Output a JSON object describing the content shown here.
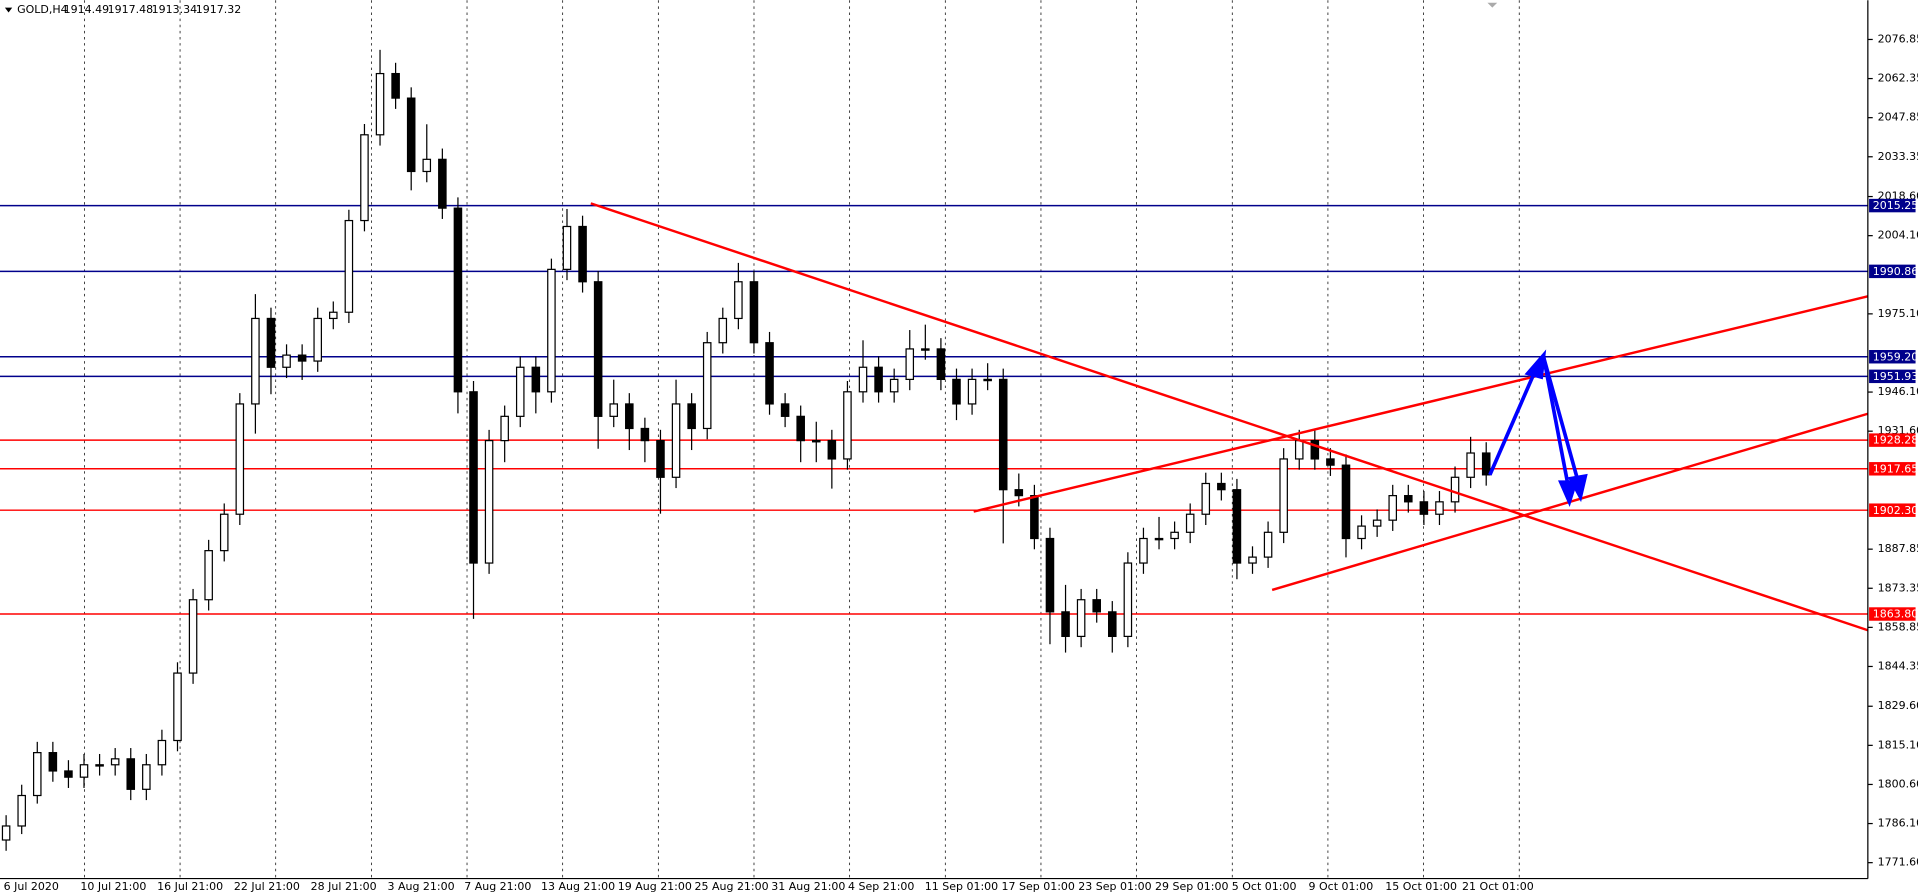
{
  "chart_data": {
    "type": "candlestick",
    "symbol": "GOLD,H4",
    "quote": [
      1914.49,
      1917.48,
      1913.34,
      1917.32
    ],
    "ylim": [
      1765.7,
      2091.37
    ],
    "yticks": [
      2076.85,
      2062.35,
      2047.85,
      2033.35,
      {
        "value": 2018.6,
        "label": "2018.60"
      },
      {
        "value": 2004.1,
        "label": "2004.10"
      },
      {
        "value": 1975.1,
        "label": "1975.10"
      },
      {
        "value": 1946.1,
        "label": "1946.10"
      },
      {
        "value": 1931.6,
        "label": "1931.60"
      },
      1887.85,
      1873.35,
      1858.85,
      1844.35,
      {
        "value": 1829.6,
        "label": "1829.60"
      },
      {
        "value": 1815.1,
        "label": "1815.10"
      },
      {
        "value": 1800.6,
        "label": "1800.60"
      },
      {
        "value": 1786.1,
        "label": "1786.10"
      },
      {
        "value": 1771.6,
        "label": "1771.60"
      }
    ],
    "levels": [
      {
        "value": 2015.25,
        "label": "2015.25",
        "color": "#00008b"
      },
      {
        "value": 1990.86,
        "label": "1990.86",
        "color": "#00008b"
      },
      {
        "value": 1959.2,
        "label": "1959.20",
        "color": "#00008b"
      },
      {
        "value": 1951.93,
        "label": "1951.93",
        "color": "#00008b"
      },
      {
        "value": 1928.28,
        "label": "1928.28",
        "color": "#ff0000"
      },
      {
        "value": 1917.65,
        "label": "1917.65",
        "color": "#ff0000"
      },
      {
        "value": 1902.3,
        "label": "1902.30",
        "color": "#ff0000"
      },
      {
        "value": 1863.8,
        "label": "1863.80",
        "color": "#ff0000"
      }
    ],
    "x_labels": [
      "6 Jul 2020",
      "10 Jul 21:00",
      "16 Jul 21:00",
      "22 Jul 21:00",
      "28 Jul 21:00",
      "3 Aug 21:00",
      "7 Aug 21:00",
      "13 Aug 21:00",
      "19 Aug 21:00",
      "25 Aug 21:00",
      "31 Aug 21:00",
      "4 Sep 21:00",
      "11 Sep 01:00",
      "17 Sep 01:00",
      "23 Sep 01:00",
      "29 Sep 01:00",
      "5 Oct 01:00",
      "9 Oct 01:00",
      "15 Oct 01:00",
      "21 Oct 01:00"
    ],
    "open": [
      1780.0,
      1785.2,
      1796.5,
      1812.4,
      1805.6,
      1803.3,
      1807.9,
      1807.9,
      1810.1,
      1798.8,
      1807.9,
      1816.9,
      1841.9,
      1869.1,
      1887.3,
      1900.8,
      1941.7,
      1973.4,
      1955.3,
      1959.8,
      1957.6,
      1973.4,
      1975.7,
      2009.7,
      2041.5,
      2064.2,
      2055.1,
      2027.9,
      2032.4,
      2014.3,
      1946.2,
      1882.7,
      1928.1,
      1937.1,
      1955.3,
      1946.2,
      1991.6,
      2007.5,
      1987.0,
      1937.1,
      1941.7,
      1932.6,
      1928.1,
      1914.5,
      1941.7,
      1932.6,
      1964.4,
      1973.4,
      1987.0,
      1964.4,
      1941.7,
      1937.1,
      1928.1,
      1928.1,
      1921.3,
      1946.2,
      1955.3,
      1946.2,
      1950.8,
      1962.1,
      1962.1,
      1950.8,
      1941.7,
      1950.8,
      1950.8,
      1909.9,
      1907.7,
      1891.8,
      1864.6,
      1855.5,
      1869.1,
      1864.6,
      1855.5,
      1882.7,
      1891.8,
      1891.8,
      1894.1,
      1900.8,
      1912.2,
      1909.9,
      1882.7,
      1884.9,
      1894.1,
      1921.3,
      1928.1,
      1921.3,
      1919.0,
      1891.8,
      1896.4,
      1898.6,
      1907.7,
      1905.4,
      1900.8,
      1905.4,
      1914.5,
      1923.5
    ],
    "high": [
      1789.2,
      1800.5,
      1816.4,
      1816.4,
      1809.6,
      1811.9,
      1811.9,
      1814.1,
      1814.1,
      1811.9,
      1820.9,
      1845.9,
      1873.1,
      1891.3,
      1904.8,
      1945.7,
      1982.4,
      1977.4,
      1963.8,
      1963.8,
      1977.4,
      1979.7,
      2013.7,
      2045.5,
      2073.0,
      2068.2,
      2059.1,
      2045.4,
      2036.4,
      2018.3,
      1950.2,
      1932.1,
      1941.1,
      1959.3,
      1959.3,
      1995.6,
      2014.0,
      2011.5,
      1991.0,
      1950.7,
      1945.7,
      1936.6,
      1932.1,
      1950.7,
      1945.7,
      1968.4,
      1977.4,
      1994.0,
      1991.0,
      1968.4,
      1945.7,
      1941.1,
      1935.1,
      1932.1,
      1950.2,
      1965.3,
      1959.3,
      1954.8,
      1969.1,
      1971.1,
      1966.1,
      1954.8,
      1954.8,
      1956.8,
      1954.8,
      1915.9,
      1911.7,
      1895.8,
      1874.6,
      1873.1,
      1873.1,
      1868.6,
      1886.7,
      1895.8,
      1899.8,
      1898.1,
      1904.8,
      1916.2,
      1916.2,
      1913.9,
      1888.9,
      1898.1,
      1925.3,
      1932.1,
      1932.1,
      1925.3,
      1923.0,
      1900.4,
      1902.6,
      1911.7,
      1911.7,
      1909.4,
      1909.4,
      1918.5,
      1929.5,
      1927.5
    ],
    "low": [
      1776.0,
      1782.2,
      1793.5,
      1801.6,
      1799.3,
      1799.3,
      1803.9,
      1803.9,
      1794.8,
      1794.8,
      1803.9,
      1812.9,
      1837.9,
      1865.1,
      1883.3,
      1896.8,
      1930.7,
      1945.3,
      1951.3,
      1950.6,
      1953.6,
      1969.4,
      1971.7,
      2005.7,
      2037.5,
      2051.1,
      2020.9,
      2023.9,
      2010.3,
      1938.2,
      1862.0,
      1878.7,
      1920.1,
      1933.1,
      1938.2,
      1942.2,
      1987.6,
      1983.0,
      1925.1,
      1933.1,
      1924.6,
      1920.1,
      1901.0,
      1910.5,
      1924.6,
      1928.6,
      1960.4,
      1969.4,
      1960.4,
      1937.7,
      1933.1,
      1920.1,
      1920.1,
      1910.3,
      1917.3,
      1942.2,
      1942.2,
      1942.2,
      1946.8,
      1958.1,
      1946.8,
      1935.7,
      1937.7,
      1946.8,
      1890.0,
      1903.7,
      1887.8,
      1852.6,
      1849.5,
      1851.5,
      1860.6,
      1849.5,
      1851.5,
      1878.7,
      1887.8,
      1887.8,
      1890.1,
      1896.8,
      1905.9,
      1876.7,
      1878.7,
      1880.9,
      1890.1,
      1917.3,
      1917.3,
      1915.0,
      1884.8,
      1887.8,
      1892.4,
      1894.6,
      1901.4,
      1896.8,
      1896.8,
      1901.4,
      1910.5,
      1911.4
    ],
    "close": [
      1785.2,
      1796.5,
      1812.4,
      1805.6,
      1803.3,
      1807.9,
      1807.9,
      1810.1,
      1798.8,
      1807.9,
      1816.9,
      1841.9,
      1869.1,
      1887.3,
      1900.8,
      1941.7,
      1973.4,
      1955.3,
      1959.8,
      1957.6,
      1973.4,
      1975.7,
      2009.7,
      2041.5,
      2064.2,
      2055.1,
      2027.9,
      2032.4,
      2014.3,
      1946.2,
      1882.7,
      1928.1,
      1937.1,
      1955.3,
      1946.2,
      1991.6,
      2007.5,
      1987.0,
      1937.1,
      1941.7,
      1932.6,
      1928.1,
      1914.5,
      1941.7,
      1932.6,
      1964.4,
      1973.4,
      1987.0,
      1964.4,
      1941.7,
      1937.1,
      1928.1,
      1928.1,
      1921.3,
      1946.2,
      1955.3,
      1946.2,
      1950.8,
      1962.1,
      1962.1,
      1950.8,
      1941.7,
      1950.8,
      1950.8,
      1909.9,
      1907.7,
      1891.8,
      1864.6,
      1855.5,
      1869.1,
      1864.6,
      1855.5,
      1882.7,
      1891.8,
      1891.8,
      1894.1,
      1900.8,
      1912.2,
      1909.9,
      1882.7,
      1884.9,
      1894.1,
      1921.3,
      1928.1,
      1921.3,
      1919.0,
      1891.8,
      1896.4,
      1898.6,
      1907.7,
      1905.4,
      1900.8,
      1905.4,
      1914.5,
      1923.5,
      1915.4
    ]
  }
}
